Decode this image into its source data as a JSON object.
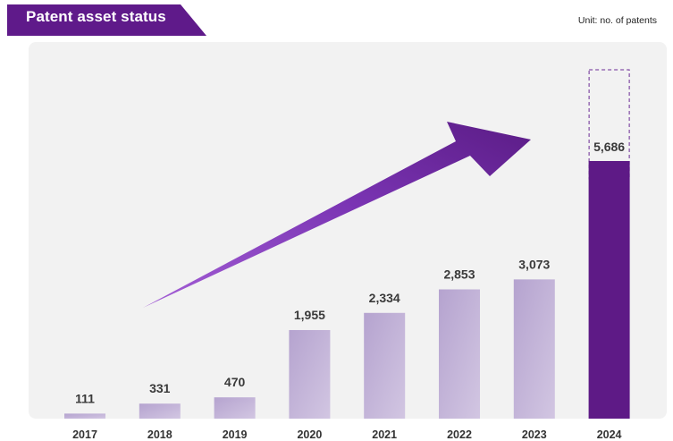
{
  "header": {
    "title": "Patent asset status",
    "unit_note": "Unit: no. of patents"
  },
  "colors": {
    "banner": "#5f1a8a",
    "banner_tab": "#3c0f5c",
    "panel_bg": "#f2f2f2",
    "bar_fill_light": "#cbbedd",
    "bar_fill_dark": "#b5a3cf",
    "highlight_bar": "#5e1a86",
    "arrow_light": "#9a55d1",
    "arrow_dark": "#5b1c86",
    "value_text": "#3a3a3a",
    "tick_text": "#333333"
  },
  "chart_data": {
    "type": "bar",
    "categories": [
      "2017",
      "2018",
      "2019",
      "2020",
      "2021",
      "2022",
      "2023",
      "2024"
    ],
    "values": [
      111,
      331,
      470,
      1955,
      2334,
      2853,
      3073,
      5686
    ],
    "value_labels": [
      "111",
      "331",
      "470",
      "1,955",
      "2,334",
      "2,853",
      "3,073",
      "5,686"
    ],
    "highlight_category": "2024",
    "ylim": [
      0,
      7700
    ],
    "grid": false,
    "legend": "none",
    "title": "Patent asset status",
    "xlabel": "",
    "ylabel": ""
  }
}
